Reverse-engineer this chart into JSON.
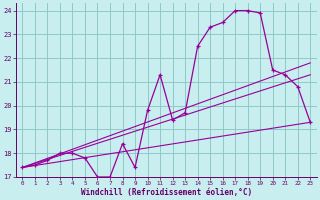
{
  "xlabel": "Windchill (Refroidissement éolien,°C)",
  "background_color": "#c8eef0",
  "grid_color": "#90c8c8",
  "line_color": "#990099",
  "spine_color": "#660066",
  "xlim": [
    -0.5,
    23.5
  ],
  "ylim": [
    17,
    24.3
  ],
  "xticks": [
    0,
    1,
    2,
    3,
    4,
    5,
    6,
    7,
    8,
    9,
    10,
    11,
    12,
    13,
    14,
    15,
    16,
    17,
    18,
    19,
    20,
    21,
    22,
    23
  ],
  "yticks": [
    17,
    18,
    19,
    20,
    21,
    22,
    23,
    24
  ],
  "hours": [
    0,
    1,
    2,
    3,
    4,
    5,
    6,
    7,
    8,
    9,
    10,
    11,
    12,
    13,
    14,
    15,
    16,
    17,
    18,
    19,
    20,
    21,
    22,
    23
  ],
  "temp": [
    17.4,
    17.5,
    17.7,
    18.0,
    18.0,
    17.8,
    17.0,
    17.0,
    18.4,
    17.4,
    19.8,
    21.3,
    19.4,
    19.7,
    22.5,
    23.3,
    23.5,
    24.0,
    24.0,
    23.9,
    21.5,
    21.3,
    20.8,
    19.3
  ],
  "line1_x": [
    0,
    23
  ],
  "line1_y": [
    17.4,
    21.8
  ],
  "line2_x": [
    0,
    23
  ],
  "line2_y": [
    17.4,
    21.3
  ],
  "line3_x": [
    0,
    23
  ],
  "line3_y": [
    17.4,
    19.3
  ]
}
